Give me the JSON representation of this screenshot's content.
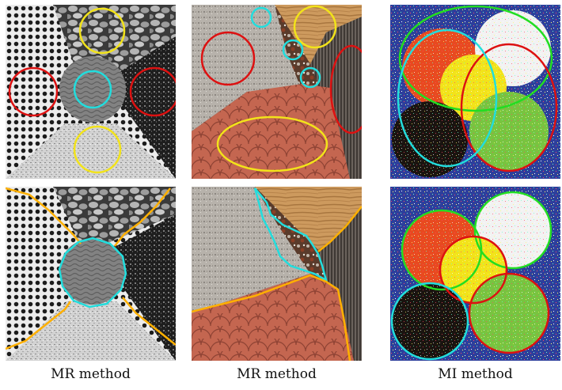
{
  "captions": [
    "MR method",
    "MR method",
    "MI method"
  ],
  "colors": {
    "red": "#dd1111",
    "yellow": "#f2e31a",
    "cyan": "#22dddd",
    "orange": "#ffb000",
    "green": "#22dd22"
  },
  "icons": [
    "texture-mosaic-image",
    "segmentation-contour"
  ]
}
